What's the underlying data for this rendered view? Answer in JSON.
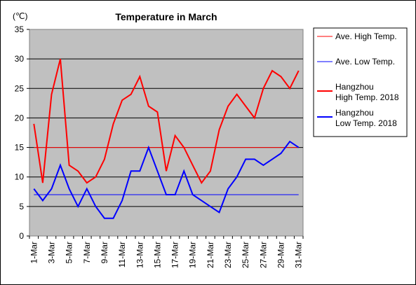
{
  "chart_data": {
    "type": "line",
    "title": "Temperature in March",
    "unit_label": "(℃)",
    "ylim": [
      0,
      35
    ],
    "yticks": [
      0,
      5,
      10,
      15,
      20,
      25,
      30,
      35
    ],
    "categories": [
      "1-Mar",
      "2-Mar",
      "3-Mar",
      "4-Mar",
      "5-Mar",
      "6-Mar",
      "7-Mar",
      "8-Mar",
      "9-Mar",
      "10-Mar",
      "11-Mar",
      "12-Mar",
      "13-Mar",
      "14-Mar",
      "15-Mar",
      "16-Mar",
      "17-Mar",
      "18-Mar",
      "19-Mar",
      "20-Mar",
      "21-Mar",
      "22-Mar",
      "23-Mar",
      "24-Mar",
      "25-Mar",
      "26-Mar",
      "27-Mar",
      "28-Mar",
      "29-Mar",
      "30-Mar",
      "31-Mar"
    ],
    "xtick_labels_shown": [
      "1-Mar",
      "3-Mar",
      "5-Mar",
      "7-Mar",
      "9-Mar",
      "11-Mar",
      "13-Mar",
      "15-Mar",
      "17-Mar",
      "19-Mar",
      "21-Mar",
      "23-Mar",
      "25-Mar",
      "27-Mar",
      "29-Mar",
      "31-Mar"
    ],
    "grid": true,
    "legend_position": "right",
    "series": [
      {
        "name": "Ave. High Temp.",
        "color": "#ff0000",
        "width": 1,
        "values": [
          15,
          15,
          15,
          15,
          15,
          15,
          15,
          15,
          15,
          15,
          15,
          15,
          15,
          15,
          15,
          15,
          15,
          15,
          15,
          15,
          15,
          15,
          15,
          15,
          15,
          15,
          15,
          15,
          15,
          15,
          15
        ]
      },
      {
        "name": "Ave. Low Temp.",
        "color": "#0000ff",
        "width": 1,
        "values": [
          7,
          7,
          7,
          7,
          7,
          7,
          7,
          7,
          7,
          7,
          7,
          7,
          7,
          7,
          7,
          7,
          7,
          7,
          7,
          7,
          7,
          7,
          7,
          7,
          7,
          7,
          7,
          7,
          7,
          7,
          7
        ]
      },
      {
        "name": "Hangzhou\nHigh Temp. 2018",
        "color": "#ff0000",
        "width": 2,
        "values": [
          19,
          9,
          24,
          30,
          12,
          11,
          9,
          10,
          13,
          19,
          23,
          24,
          27,
          22,
          21,
          11,
          17,
          15,
          12,
          9,
          11,
          18,
          22,
          24,
          22,
          20,
          25,
          28,
          27,
          25,
          28
        ]
      },
      {
        "name": "Hangzhou\nLow Temp. 2018",
        "color": "#0000ff",
        "width": 2,
        "values": [
          8,
          6,
          8,
          12,
          8,
          5,
          8,
          5,
          3,
          3,
          6,
          11,
          11,
          15,
          11,
          7,
          7,
          11,
          7,
          6,
          5,
          4,
          8,
          10,
          13,
          13,
          12,
          13,
          14,
          16,
          15
        ]
      }
    ]
  }
}
